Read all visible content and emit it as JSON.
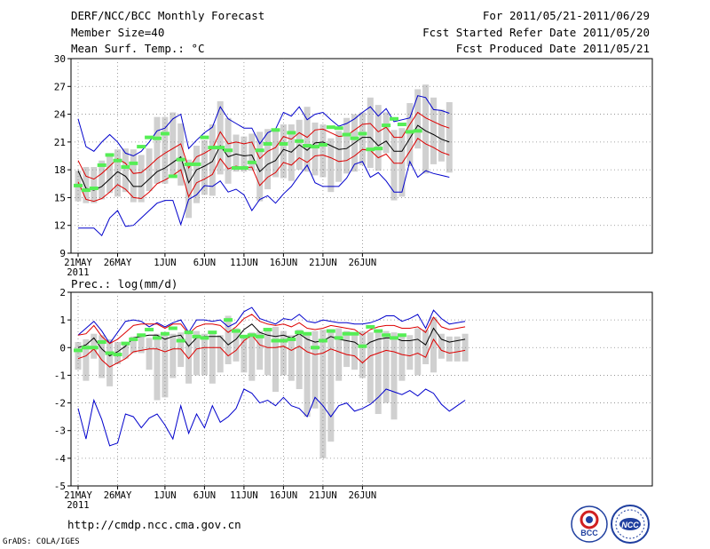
{
  "header": {
    "title": "DERF/NCC/BCC Monthly Forecast",
    "member_size": "Member Size=40",
    "variable_temp": "Mean Surf. Temp.: °C",
    "period": "For 2011/05/21-2011/06/29",
    "fcst_started": "Fcst Started Refer Date 2011/05/20",
    "fcst_produced": "Fcst Produced Date 2011/05/21"
  },
  "footer": {
    "url": "http://cmdp.ncc.cma.gov.cn",
    "credit": "GrADS: COLA/IGES",
    "logo_bcc": "BCC",
    "logo_ncc": "NCC"
  },
  "colors": {
    "max_min": "#0000cc",
    "spread": "#dd0000",
    "mean": "#000000",
    "box": "#d0d0d0",
    "marker": "#55ee55",
    "grid": "#888888"
  },
  "chart_data": [
    {
      "type": "line",
      "title": "Mean Surf. Temp.: °C",
      "x_tick_labels": [
        "21MAY",
        "26MAY",
        "1JUN",
        "6JUN",
        "11JUN",
        "16JUN",
        "21JUN",
        "26JUN"
      ],
      "x_year_label": "2011",
      "x_tick_days": [
        0,
        5,
        11,
        16,
        21,
        26,
        31,
        36
      ],
      "ylim": [
        9,
        30
      ],
      "yticks": [
        9,
        12,
        15,
        18,
        21,
        24,
        27,
        30
      ],
      "mean": [
        17.9,
        16.0,
        15.8,
        16.2,
        17.0,
        17.8,
        17.3,
        16.2,
        16.2,
        17.0,
        17.8,
        18.2,
        18.8,
        19.4,
        16.6,
        18.0,
        18.4,
        18.9,
        20.6,
        19.4,
        19.7,
        19.5,
        19.6,
        17.8,
        18.6,
        19.0,
        20.2,
        19.9,
        20.7,
        20.1,
        20.9,
        21.0,
        20.6,
        20.2,
        20.3,
        20.9,
        21.5,
        21.5,
        20.6,
        21.1,
        20.0,
        20.0,
        21.4,
        22.8,
        22.2,
        21.8,
        21.3,
        21.0
      ],
      "spread_upper": [
        19.0,
        17.3,
        17.0,
        17.6,
        18.4,
        19.2,
        18.7,
        17.6,
        17.7,
        18.4,
        19.2,
        19.8,
        20.3,
        20.8,
        18.2,
        19.4,
        19.8,
        20.3,
        22.1,
        20.8,
        21.0,
        20.8,
        21.0,
        19.2,
        20.0,
        20.4,
        21.6,
        21.3,
        22.0,
        21.5,
        22.3,
        22.4,
        22.0,
        21.6,
        21.7,
        22.3,
        22.9,
        23.0,
        22.1,
        22.6,
        21.5,
        21.5,
        22.9,
        24.2,
        23.6,
        23.2,
        22.8,
        22.5
      ],
      "spread_lower": [
        16.7,
        14.8,
        14.6,
        14.9,
        15.6,
        16.4,
        15.9,
        15.0,
        14.9,
        15.6,
        16.5,
        16.9,
        17.4,
        18.0,
        15.1,
        16.6,
        17.0,
        17.5,
        19.2,
        18.1,
        18.4,
        18.2,
        18.3,
        16.3,
        17.2,
        17.7,
        18.8,
        18.5,
        19.3,
        18.8,
        19.5,
        19.6,
        19.3,
        18.9,
        19.0,
        19.5,
        20.2,
        20.1,
        19.3,
        19.7,
        18.7,
        18.7,
        20.0,
        21.4,
        20.8,
        20.4,
        19.9,
        19.6
      ],
      "max": [
        23.5,
        20.5,
        20.0,
        21.0,
        21.8,
        21.0,
        19.8,
        19.5,
        20.0,
        21.0,
        22.2,
        22.5,
        23.5,
        24.0,
        20.3,
        21.2,
        22.0,
        22.6,
        24.8,
        23.5,
        23.0,
        22.5,
        22.5,
        20.8,
        22.0,
        22.4,
        24.2,
        23.8,
        24.8,
        23.4,
        24.0,
        24.2,
        23.4,
        22.7,
        23.0,
        23.5,
        24.2,
        24.8,
        23.8,
        24.6,
        23.2,
        23.4,
        23.6,
        26.0,
        25.8,
        24.5,
        24.4,
        24.1
      ],
      "min": [
        11.7,
        11.7,
        11.7,
        10.9,
        12.8,
        13.6,
        11.9,
        12.0,
        12.8,
        13.6,
        14.4,
        14.7,
        14.7,
        12.1,
        14.8,
        15.3,
        16.3,
        16.2,
        16.8,
        15.6,
        15.9,
        15.3,
        13.6,
        14.8,
        15.2,
        14.4,
        15.4,
        16.2,
        17.4,
        18.5,
        16.6,
        16.2,
        16.2,
        16.2,
        17.1,
        18.6,
        18.9,
        17.2,
        17.7,
        16.8,
        15.6,
        15.6,
        18.9,
        17.2,
        17.9,
        17.6,
        17.4,
        17.2
      ],
      "box_high": [
        17.9,
        18.3,
        18.3,
        19.0,
        19.8,
        20.2,
        20.3,
        20.2,
        19.6,
        20.3,
        23.7,
        23.7,
        24.2,
        23.0,
        19.1,
        20.6,
        21.2,
        22.9,
        25.4,
        23.6,
        21.8,
        21.6,
        21.9,
        22.1,
        22.4,
        22.2,
        22.9,
        22.9,
        23.4,
        24.8,
        23.1,
        22.9,
        21.4,
        22.2,
        23.6,
        24.0,
        24.2,
        25.8,
        25.0,
        24.2,
        22.3,
        22.5,
        25.2,
        26.7,
        27.2,
        25.8,
        24.5,
        25.3
      ],
      "box_low": [
        14.6,
        14.4,
        14.4,
        14.8,
        15.5,
        15.1,
        15.6,
        14.5,
        14.5,
        15.7,
        16.5,
        16.5,
        17.2,
        16.3,
        12.8,
        14.4,
        15.3,
        15.2,
        17.5,
        16.5,
        17.8,
        17.8,
        17.9,
        14.6,
        15.9,
        17.2,
        17.1,
        16.8,
        18.0,
        17.8,
        17.4,
        17.2,
        15.6,
        16.7,
        17.6,
        17.8,
        18.5,
        18.2,
        17.9,
        19.8,
        14.7,
        15.1,
        18.4,
        20.3,
        17.6,
        18.6,
        18.9,
        17.7
      ],
      "marker": [
        16.3,
        15.8,
        16.0,
        18.5,
        19.6,
        19.0,
        18.3,
        18.7,
        20.5,
        21.5,
        21.4,
        21.9,
        17.3,
        19.1,
        18.6,
        18.6,
        21.5,
        20.4,
        20.4,
        20.1,
        18.2,
        18.2,
        18.8,
        20.1,
        20.8,
        22.3,
        20.8,
        22.0,
        21.1,
        20.6,
        20.5,
        20.7,
        22.6,
        22.5,
        21.8,
        21.4,
        21.9,
        20.2,
        20.3,
        22.8,
        23.5,
        22.9,
        22.1,
        22.2
      ],
      "marker_days": [
        0,
        1,
        2,
        3,
        4,
        5,
        6,
        7,
        8,
        9,
        10,
        11,
        12,
        13,
        14,
        15,
        16,
        17,
        18,
        19,
        20,
        21,
        22,
        23,
        24,
        25,
        26,
        27,
        28,
        29,
        30,
        31,
        32,
        33,
        34,
        35,
        36,
        37,
        38,
        39,
        40,
        41,
        42,
        43
      ]
    },
    {
      "type": "line",
      "title": "Prec.: log(mm/d)",
      "x_tick_labels": [
        "21MAY",
        "26MAY",
        "1JUN",
        "6JUN",
        "11JUN",
        "16JUN",
        "21JUN",
        "26JUN"
      ],
      "x_year_label": "2011",
      "x_tick_days": [
        0,
        5,
        11,
        16,
        21,
        26,
        31,
        36
      ],
      "ylim": [
        -5,
        2
      ],
      "yticks": [
        -5,
        -4,
        -3,
        -2,
        -1,
        0,
        1,
        2
      ],
      "mean": [
        0.0,
        0.1,
        0.35,
        -0.05,
        -0.3,
        -0.15,
        0.05,
        0.35,
        0.4,
        0.45,
        0.45,
        0.3,
        0.4,
        0.45,
        0.05,
        0.35,
        0.4,
        0.4,
        0.4,
        0.1,
        0.3,
        0.65,
        0.85,
        0.55,
        0.45,
        0.4,
        0.45,
        0.35,
        0.5,
        0.3,
        0.2,
        0.25,
        0.4,
        0.3,
        0.25,
        0.2,
        0.0,
        0.2,
        0.3,
        0.35,
        0.35,
        0.25,
        0.25,
        0.3,
        0.1,
        0.7,
        0.3,
        0.2,
        0.25,
        0.3
      ],
      "spread_upper": [
        0.45,
        0.5,
        0.8,
        0.4,
        0.15,
        0.3,
        0.55,
        0.8,
        0.85,
        0.85,
        0.85,
        0.7,
        0.85,
        0.85,
        0.5,
        0.75,
        0.85,
        0.85,
        0.8,
        0.55,
        0.75,
        1.05,
        1.2,
        0.95,
        0.85,
        0.8,
        0.85,
        0.75,
        0.9,
        0.7,
        0.65,
        0.7,
        0.8,
        0.75,
        0.7,
        0.65,
        0.45,
        0.65,
        0.75,
        0.8,
        0.8,
        0.7,
        0.7,
        0.75,
        0.55,
        1.1,
        0.75,
        0.65,
        0.7,
        0.75
      ],
      "spread_lower": [
        -0.4,
        -0.3,
        -0.05,
        -0.45,
        -0.7,
        -0.55,
        -0.4,
        -0.15,
        -0.1,
        -0.05,
        -0.05,
        -0.15,
        -0.05,
        -0.05,
        -0.4,
        -0.05,
        0.0,
        0.0,
        0.0,
        -0.3,
        -0.1,
        0.25,
        0.45,
        0.1,
        0.0,
        0.0,
        0.05,
        -0.1,
        0.05,
        -0.15,
        -0.25,
        -0.2,
        -0.05,
        -0.15,
        -0.25,
        -0.3,
        -0.55,
        -0.3,
        -0.2,
        -0.1,
        -0.15,
        -0.25,
        -0.3,
        -0.2,
        -0.35,
        0.3,
        -0.1,
        -0.2,
        -0.15,
        -0.1
      ],
      "max": [
        0.45,
        0.7,
        0.95,
        0.6,
        0.15,
        0.55,
        0.95,
        1.0,
        0.95,
        0.75,
        0.9,
        0.75,
        0.9,
        1.0,
        0.55,
        1.0,
        1.0,
        0.95,
        1.0,
        0.75,
        0.9,
        1.3,
        1.45,
        1.05,
        0.95,
        0.85,
        1.05,
        1.0,
        1.2,
        0.95,
        0.9,
        1.0,
        0.95,
        0.9,
        0.9,
        0.85,
        0.85,
        0.9,
        1.0,
        1.15,
        1.15,
        0.95,
        1.05,
        1.2,
        0.7,
        1.35,
        1.05,
        0.85,
        0.9,
        0.95
      ],
      "min": [
        -2.2,
        -3.3,
        -1.9,
        -2.6,
        -3.55,
        -3.45,
        -2.4,
        -2.5,
        -2.9,
        -2.55,
        -2.4,
        -2.8,
        -3.3,
        -2.1,
        -3.1,
        -2.4,
        -2.9,
        -2.1,
        -2.7,
        -2.5,
        -2.2,
        -1.5,
        -1.65,
        -2.0,
        -1.9,
        -2.1,
        -1.8,
        -2.1,
        -2.2,
        -2.5,
        -1.8,
        -2.1,
        -2.5,
        -2.1,
        -2.0,
        -2.3,
        -2.2,
        -2.05,
        -1.8,
        -1.5,
        -1.6,
        -1.7,
        -1.55,
        -1.75,
        -1.5,
        -1.65,
        -2.05,
        -2.3,
        -2.1,
        -1.9
      ],
      "box_high": [
        0.2,
        0.3,
        0.5,
        0.45,
        0.3,
        0.2,
        0.2,
        0.4,
        0.45,
        0.35,
        0.5,
        0.55,
        0.5,
        0.55,
        0.5,
        0.6,
        0.5,
        0.55,
        0.45,
        1.15,
        0.7,
        0.45,
        0.55,
        0.6,
        0.6,
        0.75,
        0.6,
        0.45,
        0.65,
        0.5,
        0.6,
        0.65,
        0.6,
        0.7,
        0.6,
        0.55,
        0.6,
        0.55,
        0.65,
        0.6,
        0.55,
        0.5,
        0.45,
        0.7,
        0.65,
        1.1,
        0.5,
        0.4,
        0.4,
        0.5
      ],
      "box_low": [
        -0.8,
        -1.2,
        -0.4,
        -1.1,
        -1.4,
        -0.6,
        -0.4,
        -0.2,
        -0.2,
        -0.8,
        -1.9,
        -1.8,
        -1.1,
        -0.7,
        -1.3,
        -1.0,
        -1.0,
        -1.3,
        -0.9,
        -0.6,
        -0.5,
        -0.9,
        -1.2,
        -0.8,
        -1.0,
        -1.6,
        -1.0,
        -1.2,
        -1.5,
        -2.5,
        -2.2,
        -4.0,
        -3.4,
        -1.2,
        -0.7,
        -0.8,
        -1.1,
        -2.0,
        -2.4,
        -2.0,
        -2.6,
        -1.2,
        -0.8,
        -1.0,
        -0.6,
        -0.9,
        -0.4,
        -0.5,
        -0.5,
        -0.5
      ],
      "marker": [
        -0.1,
        0.0,
        0.0,
        0.2,
        -0.2,
        -0.25,
        0.15,
        0.3,
        0.45,
        0.65,
        0.35,
        0.5,
        0.7,
        0.25,
        0.55,
        0.4,
        0.35,
        0.55,
        1.0,
        0.6,
        0.4,
        0.45,
        0.4,
        0.65,
        0.25,
        0.25,
        0.3,
        0.55,
        0.5,
        0.0,
        0.25,
        0.6,
        0.35,
        0.5,
        0.5,
        0.05,
        0.75,
        0.6,
        0.45,
        0.35,
        0.45
      ],
      "marker_days": [
        0,
        1,
        2,
        3,
        4,
        5,
        6,
        7,
        8,
        9,
        10,
        11,
        12,
        13,
        14,
        15,
        16,
        17,
        19,
        20,
        21,
        22,
        23,
        24,
        25,
        26,
        27,
        28,
        29,
        30,
        31,
        32,
        33,
        34,
        35,
        36,
        37,
        38,
        39,
        40,
        41
      ]
    }
  ]
}
